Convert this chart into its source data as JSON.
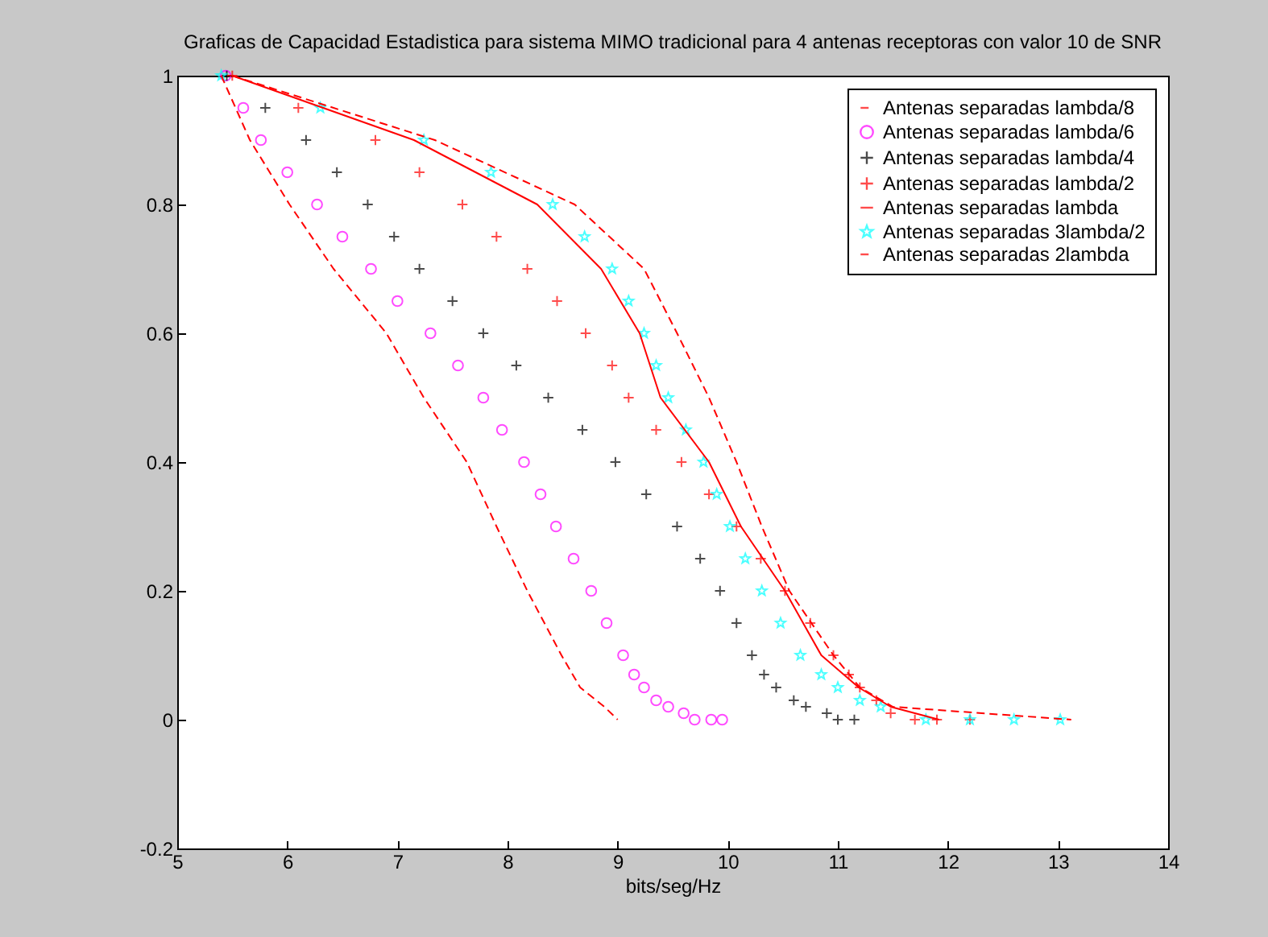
{
  "chart_data": {
    "type": "line",
    "title": "Graficas de Capacidad Estadistica para sistema MIMO tradicional para 4 antenas receptoras con valor 10 de SNR",
    "xlabel": "bits/seg/Hz",
    "xlim": [
      5,
      14
    ],
    "ylim": [
      -0.2,
      1
    ],
    "xticks": [
      5,
      6,
      7,
      8,
      9,
      10,
      11,
      12,
      13,
      14
    ],
    "yticks": [
      -0.2,
      0,
      0.2,
      0.4,
      0.6,
      0.8,
      1
    ],
    "grid": false,
    "legend": "top right",
    "series": [
      {
        "name": "Antenas separadas lambda/8",
        "line_style": "dashed",
        "marker": "none",
        "color": "#ff0000",
        "x": [
          5.4,
          5.66,
          6.02,
          6.42,
          6.9,
          7.24,
          7.63,
          7.9,
          8.18,
          8.49,
          8.66,
          8.88,
          9.0
        ],
        "values": [
          1,
          0.9,
          0.8,
          0.7,
          0.6,
          0.5,
          0.4,
          0.3,
          0.2,
          0.1,
          0.05,
          0.02,
          0
        ]
      },
      {
        "name": "Antenas separadas lambda/6",
        "type": "scatter",
        "marker": "circle",
        "color": "#ff00ff",
        "x": [
          5.44,
          5.6,
          5.76,
          6.0,
          6.27,
          6.5,
          6.76,
          7.0,
          7.3,
          7.55,
          7.78,
          7.95,
          8.15,
          8.3,
          8.44,
          8.6,
          8.76,
          8.9,
          9.05,
          9.15,
          9.24,
          9.35,
          9.46,
          9.6,
          9.7,
          9.85,
          9.95
        ],
        "values": [
          1,
          0.95,
          0.9,
          0.85,
          0.8,
          0.75,
          0.7,
          0.65,
          0.6,
          0.55,
          0.5,
          0.45,
          0.4,
          0.35,
          0.3,
          0.25,
          0.2,
          0.15,
          0.1,
          0.07,
          0.05,
          0.03,
          0.02,
          0.01,
          0,
          0,
          0
        ]
      },
      {
        "name": "Antenas separadas lambda/4",
        "type": "scatter",
        "marker": "cross",
        "color": "#000000",
        "x": [
          5.45,
          5.8,
          6.17,
          6.45,
          6.73,
          6.97,
          7.2,
          7.5,
          7.78,
          8.08,
          8.37,
          8.68,
          8.98,
          9.26,
          9.54,
          9.75,
          9.93,
          10.08,
          10.22,
          10.33,
          10.44,
          10.6,
          10.71,
          10.9,
          11.0,
          11.15
        ],
        "values": [
          1,
          0.95,
          0.9,
          0.85,
          0.8,
          0.75,
          0.7,
          0.65,
          0.6,
          0.55,
          0.5,
          0.45,
          0.4,
          0.35,
          0.3,
          0.25,
          0.2,
          0.15,
          0.1,
          0.07,
          0.05,
          0.03,
          0.02,
          0.01,
          0,
          0
        ]
      },
      {
        "name": "Antenas separadas lambda/2",
        "type": "scatter",
        "marker": "cross",
        "color": "#ff0000",
        "x": [
          5.5,
          6.1,
          6.8,
          7.2,
          7.59,
          7.9,
          8.18,
          8.45,
          8.71,
          8.95,
          9.1,
          9.35,
          9.58,
          9.83,
          10.08,
          10.3,
          10.52,
          10.75,
          10.96,
          11.1,
          11.2,
          11.35,
          11.48,
          11.7,
          11.9,
          12.2
        ],
        "values": [
          1,
          0.95,
          0.9,
          0.85,
          0.8,
          0.75,
          0.7,
          0.65,
          0.6,
          0.55,
          0.5,
          0.45,
          0.4,
          0.35,
          0.3,
          0.25,
          0.2,
          0.15,
          0.1,
          0.07,
          0.05,
          0.03,
          0.01,
          0,
          0,
          0
        ]
      },
      {
        "name": "Antenas separadas lambda",
        "line_style": "solid",
        "marker": "none",
        "color": "#ff0000",
        "x": [
          5.5,
          7.15,
          8.27,
          8.85,
          9.2,
          9.39,
          9.83,
          10.12,
          10.52,
          10.85,
          11.19,
          11.48,
          11.92
        ],
        "values": [
          1,
          0.9,
          0.8,
          0.7,
          0.6,
          0.5,
          0.4,
          0.3,
          0.2,
          0.1,
          0.05,
          0.02,
          0
        ]
      },
      {
        "name": "Antenas separadas 3lambda/2",
        "type": "scatter",
        "marker": "star",
        "color": "#00ffff",
        "x": [
          5.4,
          6.3,
          7.24,
          7.85,
          8.41,
          8.7,
          8.95,
          9.1,
          9.24,
          9.35,
          9.46,
          9.62,
          9.78,
          9.9,
          10.02,
          10.16,
          10.31,
          10.48,
          10.66,
          10.85,
          11.0,
          11.2,
          11.39,
          11.8,
          12.2,
          12.6,
          13.02
        ],
        "values": [
          1,
          0.95,
          0.9,
          0.85,
          0.8,
          0.75,
          0.7,
          0.65,
          0.6,
          0.55,
          0.5,
          0.45,
          0.4,
          0.35,
          0.3,
          0.25,
          0.2,
          0.15,
          0.1,
          0.07,
          0.05,
          0.03,
          0.02,
          0,
          0,
          0,
          0
        ]
      },
      {
        "name": "Antenas separadas 2lambda",
        "line_style": "dashed",
        "marker": "none",
        "color": "#ff0000",
        "x": [
          5.5,
          7.34,
          8.61,
          9.24,
          9.54,
          9.83,
          10.08,
          10.31,
          10.56,
          10.96,
          11.2,
          11.5,
          13.12
        ],
        "values": [
          1,
          0.9,
          0.8,
          0.7,
          0.6,
          0.5,
          0.4,
          0.3,
          0.2,
          0.1,
          0.05,
          0.02,
          0
        ]
      }
    ]
  }
}
